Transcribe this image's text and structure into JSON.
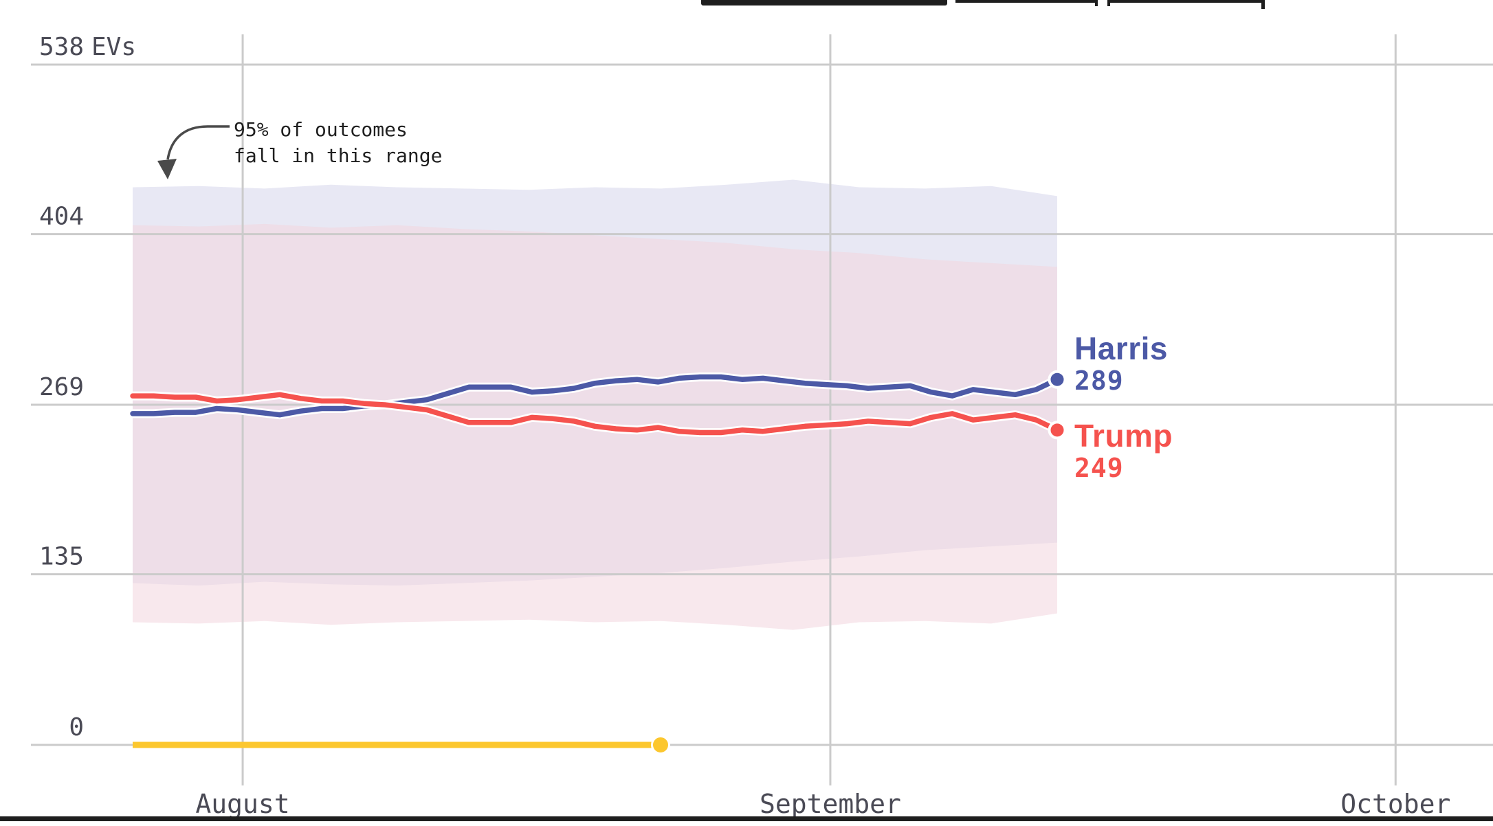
{
  "colors": {
    "toolbar_black": "#1e1e1e",
    "grid": "#cbcbcb",
    "axis_text": "#4a4a55",
    "harris_blue": "#4c59a6",
    "trump_red": "#f5524e",
    "progress_yellow": "#fcc72e",
    "harris_band": "#e8e8f4",
    "trump_band": "rgba(243,214,222,0.55)"
  },
  "chart_data": {
    "type": "line",
    "title": "538 EVs",
    "y_axis": {
      "ticks": [
        538,
        404,
        269,
        135,
        0
      ],
      "unit_suffix": "EVs",
      "range": [
        0,
        538
      ],
      "grid": true
    },
    "x_axis": {
      "labels": [
        "August",
        "September",
        "October"
      ],
      "grid": true
    },
    "annotation": {
      "line1": "95% of outcomes",
      "line2": "fall in this range"
    },
    "series": [
      {
        "name": "Harris",
        "color": "#4c59a6",
        "end_value": 289,
        "values": [
          262,
          262,
          263,
          263,
          266,
          265,
          263,
          261,
          264,
          266,
          266,
          268,
          269,
          271,
          273,
          278,
          283,
          283,
          283,
          279,
          280,
          282,
          286,
          288,
          289,
          287,
          290,
          291,
          291,
          289,
          290,
          288,
          286,
          285,
          284,
          282,
          283,
          284,
          279,
          276,
          281,
          279,
          277,
          281,
          289
        ]
      },
      {
        "name": "Trump",
        "color": "#f5524e",
        "end_value": 249,
        "values": [
          276,
          276,
          275,
          275,
          272,
          273,
          275,
          277,
          274,
          272,
          272,
          270,
          269,
          267,
          265,
          260,
          255,
          255,
          255,
          259,
          258,
          256,
          252,
          250,
          249,
          251,
          248,
          247,
          247,
          249,
          248,
          250,
          252,
          253,
          254,
          256,
          255,
          254,
          259,
          262,
          257,
          259,
          261,
          257,
          249
        ]
      }
    ],
    "bands": {
      "label": "95% of outcomes fall in this range",
      "harris": {
        "color": "#e8e8f4",
        "upper": [
          441,
          442,
          440,
          443,
          441,
          440,
          439,
          441,
          440,
          443,
          447,
          441,
          440,
          442,
          434
        ],
        "lower": [
          128,
          126,
          129,
          127,
          126,
          128,
          130,
          133,
          136,
          140,
          145,
          149,
          154,
          157,
          160
        ]
      },
      "trump": {
        "color": "rgba(243,214,222,0.55)",
        "upper": [
          411,
          410,
          412,
          409,
          411,
          408,
          406,
          403,
          400,
          397,
          392,
          389,
          384,
          381,
          378
        ],
        "lower": [
          97,
          96,
          98,
          95,
          97,
          98,
          99,
          97,
          98,
          95,
          91,
          97,
          98,
          96,
          104
        ]
      }
    },
    "progress": {
      "color": "#fcc72e",
      "fraction": 0.571
    },
    "legend_position": "right-end-of-lines"
  }
}
